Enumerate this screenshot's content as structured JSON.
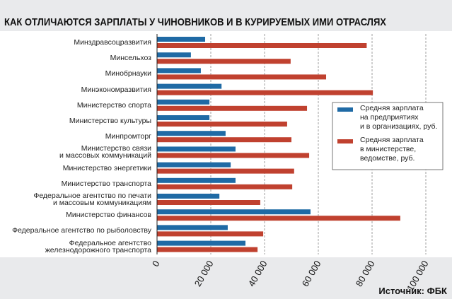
{
  "chart_data": {
    "type": "bar",
    "orientation": "horizontal",
    "title": "КАК ОТЛИЧАЮТСЯ ЗАРПЛАТЫ У ЧИНОВНИКОВ И В КУРИРУЕМЫХ ИМИ ОТРАСЛЯХ",
    "source": "Источник: ФБК",
    "categories": [
      "Минздравсоцразвития",
      "Минсельхоз",
      "Минобрнауки",
      "Минэкономразвития",
      "Министерство спорта",
      "Министерство культуры",
      "Минпромторг",
      "Министерство связи\nи массовых коммуникаций",
      "Министерство энергетики",
      "Министерство транспорта",
      "Федеральное агентство по печати\nи массовым коммуникациям",
      "Министерство финансов",
      "Федеральное агентство по рыболовству",
      "Федеральное агентство\nжелезнодорожного транспорта"
    ],
    "series": [
      {
        "name": "Средняя зарплата\nна предприятиях\nи в организациях, руб.",
        "color": "#1f6aa5",
        "values": [
          17900,
          12600,
          16300,
          24000,
          19500,
          19500,
          25500,
          29200,
          27400,
          29200,
          23200,
          57100,
          26300,
          32900
        ]
      },
      {
        "name": "Средняя зарплата\nв министерстве,\nведомстве, руб.",
        "color": "#c0412f",
        "values": [
          78000,
          49700,
          62900,
          80300,
          55800,
          48400,
          50000,
          56600,
          51000,
          50300,
          38400,
          90500,
          39500,
          37400
        ]
      }
    ],
    "xlim": [
      0,
      100000
    ],
    "xticks": [
      0,
      {
        "value": 20000,
        "label": "20 000"
      },
      {
        "value": 40000,
        "label": "40 000"
      },
      {
        "value": 60000,
        "label": "60 000"
      },
      {
        "value": 80000,
        "label": "80 000"
      },
      {
        "value": 100000,
        "label": "100 000"
      }
    ],
    "grid": true
  }
}
